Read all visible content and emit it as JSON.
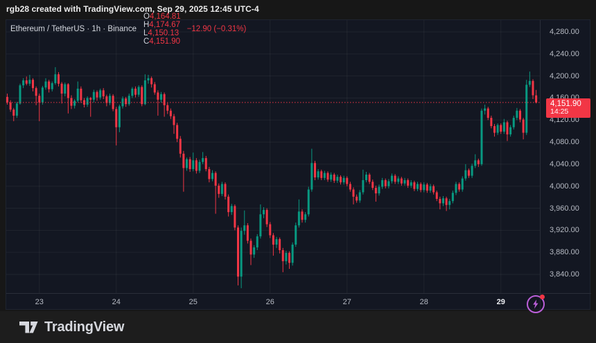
{
  "header": {
    "caption": "rgb28 created with TradingView.com, Sep 29, 2025 12:45 UTC-4"
  },
  "legend": {
    "title": "Ethereum / TetherUS · 1h · Binance",
    "ohlc": [
      {
        "label": "O",
        "value": "4,164.81"
      },
      {
        "label": "H",
        "value": "4,174.67"
      },
      {
        "label": "L",
        "value": "4,150.13"
      },
      {
        "label": "C",
        "value": "4,151.90"
      }
    ],
    "change": "−12.90 (−0.31%)"
  },
  "price_tag": {
    "price": "4,151.90",
    "countdown": "14:25"
  },
  "footer": {
    "brand": "TradingView"
  },
  "colors": {
    "up": "#089981",
    "down": "#f23645",
    "grid": "rgba(200,206,216,0.07)",
    "price_line": "#f23645",
    "flash_purple": "#bb5fd9"
  },
  "chart_data": {
    "type": "candlestick",
    "symbol": "Ethereum / TetherUS",
    "interval": "1h",
    "exchange": "Binance",
    "last": {
      "open": 4164.81,
      "high": 4174.67,
      "low": 4150.13,
      "close": 4151.9,
      "change": -12.9,
      "change_pct": -0.31
    },
    "y_axis": {
      "top": 4280,
      "bottom": 3840,
      "step": 40
    },
    "y_ticks": [
      {
        "text": "4,280.00",
        "value": 4280
      },
      {
        "text": "4,240.00",
        "value": 4240
      },
      {
        "text": "4,200.00",
        "value": 4200
      },
      {
        "text": "4,160.00",
        "value": 4160
      },
      {
        "text": "4,120.00",
        "value": 4120
      },
      {
        "text": "4,080.00",
        "value": 4080
      },
      {
        "text": "4,040.00",
        "value": 4040
      },
      {
        "text": "4,000.00",
        "value": 4000
      },
      {
        "text": "3,960.00",
        "value": 3960
      },
      {
        "text": "3,920.00",
        "value": 3920
      },
      {
        "text": "3,880.00",
        "value": 3880
      },
      {
        "text": "3,840.00",
        "value": 3840
      }
    ],
    "x_ticks": [
      {
        "text": "23",
        "index": 10,
        "current": false
      },
      {
        "text": "24",
        "index": 34,
        "current": false
      },
      {
        "text": "25",
        "index": 58,
        "current": false
      },
      {
        "text": "26",
        "index": 82,
        "current": false
      },
      {
        "text": "27",
        "index": 106,
        "current": false
      },
      {
        "text": "28",
        "index": 130,
        "current": false
      },
      {
        "text": "29",
        "index": 154,
        "current": true
      }
    ],
    "candles": [
      [
        4162,
        4168,
        4148,
        4152
      ],
      [
        4152,
        4156,
        4135,
        4139
      ],
      [
        4139,
        4142,
        4118,
        4128
      ],
      [
        4128,
        4153,
        4124,
        4150
      ],
      [
        4150,
        4186,
        4148,
        4183
      ],
      [
        4183,
        4196,
        4178,
        4192
      ],
      [
        4192,
        4199,
        4183,
        4186
      ],
      [
        4186,
        4202,
        4182,
        4193
      ],
      [
        4193,
        4196,
        4172,
        4178
      ],
      [
        4178,
        4181,
        4147,
        4164
      ],
      [
        4164,
        4168,
        4118,
        4152
      ],
      [
        4152,
        4182,
        4148,
        4179
      ],
      [
        4179,
        4196,
        4175,
        4190
      ],
      [
        4190,
        4193,
        4170,
        4176
      ],
      [
        4176,
        4190,
        4172,
        4187
      ],
      [
        4187,
        4216,
        4184,
        4203
      ],
      [
        4203,
        4207,
        4181,
        4186
      ],
      [
        4186,
        4189,
        4150,
        4168
      ],
      [
        4168,
        4188,
        4163,
        4185
      ],
      [
        4185,
        4187,
        4132,
        4160
      ],
      [
        4160,
        4165,
        4140,
        4146
      ],
      [
        4146,
        4158,
        4141,
        4155
      ],
      [
        4155,
        4190,
        4152,
        4177
      ],
      [
        4177,
        4181,
        4151,
        4156
      ],
      [
        4156,
        4160,
        4143,
        4148
      ],
      [
        4148,
        4163,
        4144,
        4160
      ],
      [
        4160,
        4162,
        4126,
        4157
      ],
      [
        4157,
        4175,
        4152,
        4171
      ],
      [
        4171,
        4174,
        4155,
        4161
      ],
      [
        4161,
        4177,
        4157,
        4174
      ],
      [
        4174,
        4178,
        4158,
        4163
      ],
      [
        4163,
        4166,
        4145,
        4151
      ],
      [
        4151,
        4168,
        4147,
        4164
      ],
      [
        4164,
        4167,
        4136,
        4140
      ],
      [
        4140,
        4144,
        4074,
        4107
      ],
      [
        4107,
        4148,
        4098,
        4145
      ],
      [
        4145,
        4163,
        4141,
        4159
      ],
      [
        4159,
        4162,
        4144,
        4149
      ],
      [
        4149,
        4168,
        4146,
        4164
      ],
      [
        4164,
        4180,
        4160,
        4177
      ],
      [
        4177,
        4181,
        4161,
        4166
      ],
      [
        4166,
        4183,
        4162,
        4180
      ],
      [
        4180,
        4183,
        4145,
        4149
      ],
      [
        4149,
        4203,
        4147,
        4192
      ],
      [
        4192,
        4202,
        4186,
        4196
      ],
      [
        4196,
        4199,
        4179,
        4185
      ],
      [
        4185,
        4189,
        4166,
        4170
      ],
      [
        4170,
        4174,
        4128,
        4157
      ],
      [
        4157,
        4171,
        4152,
        4167
      ],
      [
        4167,
        4170,
        4126,
        4147
      ],
      [
        4147,
        4151,
        4131,
        4137
      ],
      [
        4137,
        4141,
        4122,
        4127
      ],
      [
        4127,
        4131,
        4095,
        4111
      ],
      [
        4111,
        4115,
        4080,
        4086
      ],
      [
        4086,
        4091,
        4052,
        4059
      ],
      [
        4059,
        4064,
        3990,
        4033
      ],
      [
        4033,
        4052,
        4028,
        4049
      ],
      [
        4049,
        4053,
        4026,
        4031
      ],
      [
        4031,
        4061,
        4027,
        4047
      ],
      [
        4047,
        4051,
        4023,
        4028
      ],
      [
        4028,
        4048,
        4024,
        4044
      ],
      [
        4044,
        4062,
        4040,
        4051
      ],
      [
        4051,
        4055,
        4027,
        4031
      ],
      [
        4031,
        4035,
        4007,
        4013
      ],
      [
        4013,
        4029,
        4009,
        4024
      ],
      [
        4024,
        4027,
        3950,
        4001
      ],
      [
        4001,
        4005,
        3979,
        3986
      ],
      [
        3986,
        4008,
        3982,
        4004
      ],
      [
        4004,
        4007,
        3976,
        3981
      ],
      [
        3981,
        3985,
        3945,
        3953
      ],
      [
        3953,
        3968,
        3948,
        3964
      ],
      [
        3964,
        3967,
        3920,
        3925
      ],
      [
        3925,
        3929,
        3820,
        3836
      ],
      [
        3836,
        3925,
        3815,
        3919
      ],
      [
        3919,
        3956,
        3912,
        3929
      ],
      [
        3929,
        3933,
        3896,
        3901
      ],
      [
        3901,
        3905,
        3857,
        3876
      ],
      [
        3876,
        3893,
        3870,
        3889
      ],
      [
        3889,
        3913,
        3884,
        3909
      ],
      [
        3909,
        3967,
        3905,
        3949
      ],
      [
        3949,
        3962,
        3942,
        3957
      ],
      [
        3957,
        3960,
        3926,
        3931
      ],
      [
        3931,
        3935,
        3906,
        3911
      ],
      [
        3911,
        3915,
        3874,
        3894
      ],
      [
        3894,
        3908,
        3888,
        3904
      ],
      [
        3904,
        3907,
        3878,
        3884
      ],
      [
        3884,
        3888,
        3844,
        3864
      ],
      [
        3864,
        3883,
        3858,
        3879
      ],
      [
        3879,
        3882,
        3850,
        3861
      ],
      [
        3861,
        3898,
        3856,
        3894
      ],
      [
        3894,
        3934,
        3890,
        3929
      ],
      [
        3929,
        3976,
        3925,
        3954
      ],
      [
        3954,
        3958,
        3934,
        3939
      ],
      [
        3939,
        3953,
        3934,
        3949
      ],
      [
        3949,
        3999,
        3945,
        3994
      ],
      [
        3994,
        4068,
        3990,
        4042
      ],
      [
        4042,
        4046,
        4011,
        4016
      ],
      [
        4016,
        4031,
        4012,
        4027
      ],
      [
        4027,
        4030,
        4011,
        4015
      ],
      [
        4015,
        4028,
        4011,
        4024
      ],
      [
        4024,
        4027,
        4008,
        4012
      ],
      [
        4012,
        4025,
        4008,
        4021
      ],
      [
        4021,
        4024,
        4006,
        4010
      ],
      [
        4010,
        4021,
        4006,
        4017
      ],
      [
        4017,
        4020,
        4003,
        4007
      ],
      [
        4007,
        4019,
        4003,
        4015
      ],
      [
        4015,
        4018,
        4000,
        4004
      ],
      [
        4004,
        4008,
        3990,
        3994
      ],
      [
        3994,
        3998,
        3967,
        3981
      ],
      [
        3981,
        3985,
        3970,
        3974
      ],
      [
        3974,
        3993,
        3970,
        3989
      ],
      [
        3989,
        4030,
        3985,
        4011
      ],
      [
        4011,
        4026,
        4007,
        4021
      ],
      [
        4021,
        4024,
        4004,
        4008
      ],
      [
        4008,
        4012,
        3993,
        3997
      ],
      [
        3997,
        4001,
        3972,
        3987
      ],
      [
        3987,
        4003,
        3983,
        3999
      ],
      [
        3999,
        4015,
        3995,
        4011
      ],
      [
        4011,
        4014,
        3996,
        4000
      ],
      [
        4000,
        4013,
        3996,
        4009
      ],
      [
        4009,
        4023,
        4005,
        4019
      ],
      [
        4019,
        4022,
        4004,
        4008
      ],
      [
        4008,
        4018,
        4004,
        4014
      ],
      [
        4014,
        4017,
        4001,
        4005
      ],
      [
        4005,
        4015,
        4001,
        4011
      ],
      [
        4011,
        4014,
        3997,
        4001
      ],
      [
        4001,
        4011,
        3997,
        4007
      ],
      [
        4007,
        4010,
        3991,
        3995
      ],
      [
        3995,
        4008,
        3991,
        4004
      ],
      [
        4004,
        4007,
        3989,
        3993
      ],
      [
        3993,
        4007,
        3989,
        4003
      ],
      [
        4003,
        4006,
        3988,
        3992
      ],
      [
        3992,
        4004,
        3988,
        4000
      ],
      [
        4000,
        4003,
        3985,
        3989
      ],
      [
        3989,
        3992,
        3973,
        3977
      ],
      [
        3977,
        3981,
        3958,
        3969
      ],
      [
        3969,
        3982,
        3964,
        3978
      ],
      [
        3978,
        3981,
        3955,
        3966
      ],
      [
        3966,
        3977,
        3958,
        3973
      ],
      [
        3973,
        3992,
        3969,
        3988
      ],
      [
        3988,
        4008,
        3984,
        4004
      ],
      [
        4004,
        4007,
        3990,
        3994
      ],
      [
        3994,
        4018,
        3990,
        4014
      ],
      [
        4014,
        4040,
        4010,
        4029
      ],
      [
        4029,
        4032,
        4015,
        4019
      ],
      [
        4019,
        4041,
        4015,
        4037
      ],
      [
        4037,
        4058,
        4033,
        4047
      ],
      [
        4047,
        4050,
        4035,
        4040
      ],
      [
        4040,
        4141,
        4037,
        4137
      ],
      [
        4137,
        4148,
        4130,
        4141
      ],
      [
        4141,
        4144,
        4120,
        4124
      ],
      [
        4124,
        4128,
        4105,
        4109
      ],
      [
        4109,
        4113,
        4090,
        4097
      ],
      [
        4097,
        4114,
        4093,
        4111
      ],
      [
        4111,
        4114,
        4095,
        4099
      ],
      [
        4099,
        4122,
        4095,
        4116
      ],
      [
        4116,
        4119,
        4082,
        4094
      ],
      [
        4094,
        4111,
        4090,
        4107
      ],
      [
        4107,
        4128,
        4103,
        4124
      ],
      [
        4124,
        4142,
        4120,
        4137
      ],
      [
        4137,
        4140,
        4116,
        4121
      ],
      [
        4121,
        4124,
        4085,
        4097
      ],
      [
        4097,
        4193,
        4093,
        4184
      ],
      [
        4184,
        4208,
        4180,
        4191
      ],
      [
        4191,
        4194,
        4158,
        4165
      ],
      [
        4164.81,
        4174.67,
        4150.13,
        4151.9
      ]
    ]
  }
}
